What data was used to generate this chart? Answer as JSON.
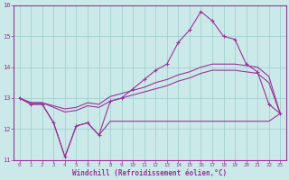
{
  "xlabel": "Windchill (Refroidissement éolien,°C)",
  "bg_color": "#cce9e9",
  "grid_color": "#99cccc",
  "line_color": "#993399",
  "hours": [
    0,
    1,
    2,
    3,
    4,
    5,
    6,
    7,
    8,
    9,
    10,
    11,
    12,
    13,
    14,
    15,
    16,
    17,
    18,
    19,
    20,
    21,
    22,
    23
  ],
  "temp": [
    13.0,
    12.8,
    12.8,
    12.2,
    11.1,
    12.1,
    12.2,
    11.8,
    12.9,
    13.0,
    13.3,
    13.6,
    13.9,
    14.1,
    14.8,
    15.2,
    15.8,
    15.5,
    15.0,
    14.9,
    14.1,
    13.85,
    12.8,
    12.5
  ],
  "min_line": [
    13.0,
    12.8,
    12.8,
    12.2,
    11.1,
    12.1,
    12.2,
    11.8,
    12.25,
    12.25,
    12.25,
    12.25,
    12.25,
    12.25,
    12.25,
    12.25,
    12.25,
    12.25,
    12.25,
    12.25,
    12.25,
    12.25,
    12.25,
    12.5
  ],
  "avg_line": [
    13.0,
    12.85,
    12.85,
    12.7,
    12.55,
    12.6,
    12.75,
    12.7,
    12.9,
    13.0,
    13.1,
    13.2,
    13.3,
    13.4,
    13.55,
    13.65,
    13.8,
    13.9,
    13.9,
    13.9,
    13.85,
    13.8,
    13.5,
    12.5
  ],
  "max_line": [
    13.0,
    12.85,
    12.85,
    12.75,
    12.65,
    12.7,
    12.85,
    12.8,
    13.05,
    13.15,
    13.25,
    13.35,
    13.5,
    13.6,
    13.75,
    13.85,
    14.0,
    14.1,
    14.1,
    14.1,
    14.05,
    14.0,
    13.7,
    12.5
  ],
  "ylim": [
    11.0,
    16.0
  ],
  "yticks": [
    11,
    12,
    13,
    14,
    15,
    16
  ],
  "xticks": [
    0,
    1,
    2,
    3,
    4,
    5,
    6,
    7,
    8,
    9,
    10,
    11,
    12,
    13,
    14,
    15,
    16,
    17,
    18,
    19,
    20,
    21,
    22,
    23
  ]
}
